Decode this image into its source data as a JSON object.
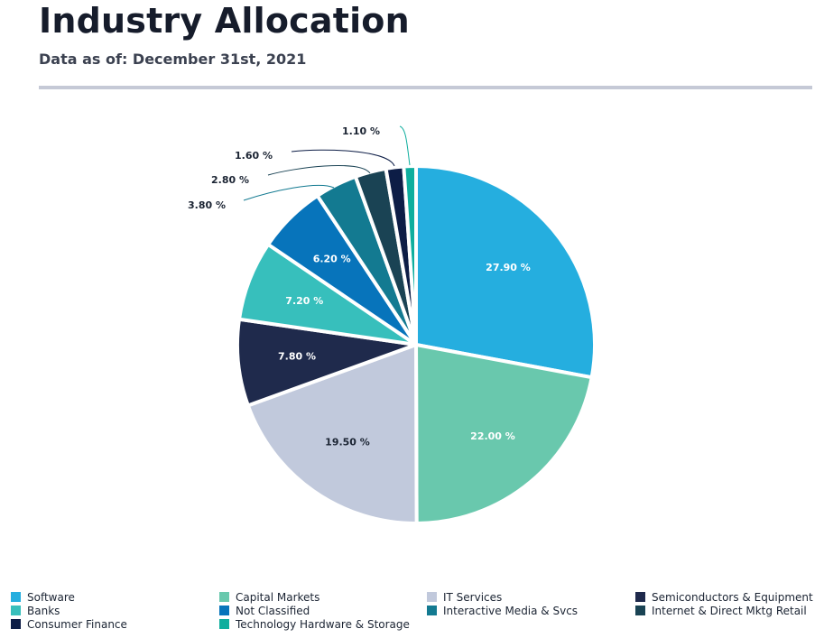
{
  "header": {
    "title": "Industry Allocation",
    "subtitle": "Data as of: December 31st, 2021"
  },
  "chart_data": {
    "type": "pie",
    "title": "Industry Allocation",
    "unit": "%",
    "legend_position": "bottom",
    "slices": [
      {
        "name": "Software",
        "value": 27.9,
        "label": "27.90 %",
        "color": "#25aedf",
        "label_color": "#ffffff"
      },
      {
        "name": "Capital Markets",
        "value": 22.0,
        "label": "22.00 %",
        "color": "#69c8ad",
        "label_color": "#ffffff"
      },
      {
        "name": "IT Services",
        "value": 19.5,
        "label": "19.50 %",
        "color": "#c1c9dc",
        "label_color": "#1b2433"
      },
      {
        "name": "Semiconductors & Equipment",
        "value": 7.8,
        "label": "7.80 %",
        "color": "#1f2a4c",
        "label_color": "#ffffff"
      },
      {
        "name": "Banks",
        "value": 7.2,
        "label": "7.20 %",
        "color": "#37bfbc",
        "label_color": "#ffffff"
      },
      {
        "name": "Not Classified",
        "value": 6.2,
        "label": "6.20 %",
        "color": "#0774bb",
        "label_color": "#ffffff"
      },
      {
        "name": "Interactive Media & Svcs",
        "value": 3.8,
        "label": "3.80 %",
        "color": "#137a91",
        "label_color": "#1b2433"
      },
      {
        "name": "Internet & Direct Mktg Retail",
        "value": 2.8,
        "label": "2.80 %",
        "color": "#1a4354",
        "label_color": "#1b2433"
      },
      {
        "name": "Consumer Finance",
        "value": 1.6,
        "label": "1.60 %",
        "color": "#0d1d46",
        "label_color": "#1b2433"
      },
      {
        "name": "Technology Hardware & Storage",
        "value": 1.1,
        "label": "1.10 %",
        "color": "#0fae9e",
        "label_color": "#1b2433"
      }
    ]
  }
}
